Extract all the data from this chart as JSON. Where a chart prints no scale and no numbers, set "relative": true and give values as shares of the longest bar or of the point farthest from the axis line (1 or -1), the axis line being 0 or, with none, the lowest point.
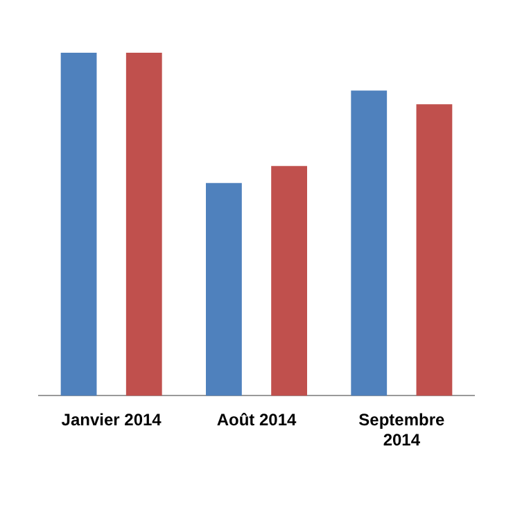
{
  "chart_data": {
    "type": "bar",
    "relative": true,
    "categories": [
      "Janvier 2014",
      "Août 2014",
      "Septembre 2014"
    ],
    "series": [
      {
        "color": "#4f81bd",
        "values": [
          1,
          0.62,
          0.89
        ]
      },
      {
        "color": "#c0504d",
        "values": [
          1,
          0.67,
          0.85
        ]
      }
    ],
    "grid": false,
    "legend": false
  }
}
